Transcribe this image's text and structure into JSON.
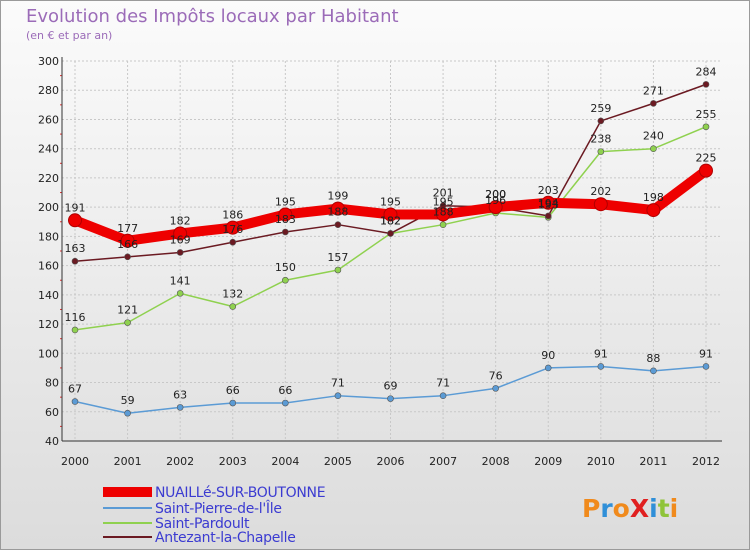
{
  "chart_data": {
    "type": "line",
    "title": "Evolution des Impôts locaux par Habitant",
    "subtitle": "(en € et par an)",
    "x": [
      "2000",
      "2001",
      "2002",
      "2003",
      "2004",
      "2005",
      "2006",
      "2007",
      "2008",
      "2009",
      "2010",
      "2011",
      "2012"
    ],
    "ylim": [
      40,
      300
    ],
    "yticks": [
      40,
      60,
      80,
      100,
      120,
      140,
      160,
      180,
      200,
      220,
      240,
      260,
      280,
      300
    ],
    "grid": true,
    "legend_position": "bottom-left",
    "series": [
      {
        "name": "NUAILLé-SUR-BOUTONNE",
        "color": "#ee0000",
        "values": [
          191,
          177,
          182,
          186,
          195,
          199,
          195,
          195,
          200,
          203,
          202,
          198,
          225
        ]
      },
      {
        "name": "Saint-Pierre-de-l'Île",
        "color": "#5b9bd5",
        "values": [
          67,
          59,
          63,
          66,
          66,
          71,
          69,
          71,
          76,
          90,
          91,
          88,
          91
        ]
      },
      {
        "name": "Saint-Pardoult",
        "color": "#8fd14f",
        "values": [
          116,
          121,
          141,
          132,
          150,
          157,
          182,
          188,
          196,
          193,
          238,
          240,
          255
        ]
      },
      {
        "name": "Antezant-la-Chapelle",
        "color": "#6b1a22",
        "values": [
          163,
          166,
          169,
          176,
          183,
          188,
          182,
          201,
          200,
          194,
          259,
          271,
          284
        ]
      }
    ]
  },
  "logo": {
    "text": "ProXiti",
    "colors": [
      "#f08a1c",
      "#2f8fd8",
      "#f08a1c",
      "#e02020",
      "#2f8fd8",
      "#8fc43a"
    ]
  }
}
